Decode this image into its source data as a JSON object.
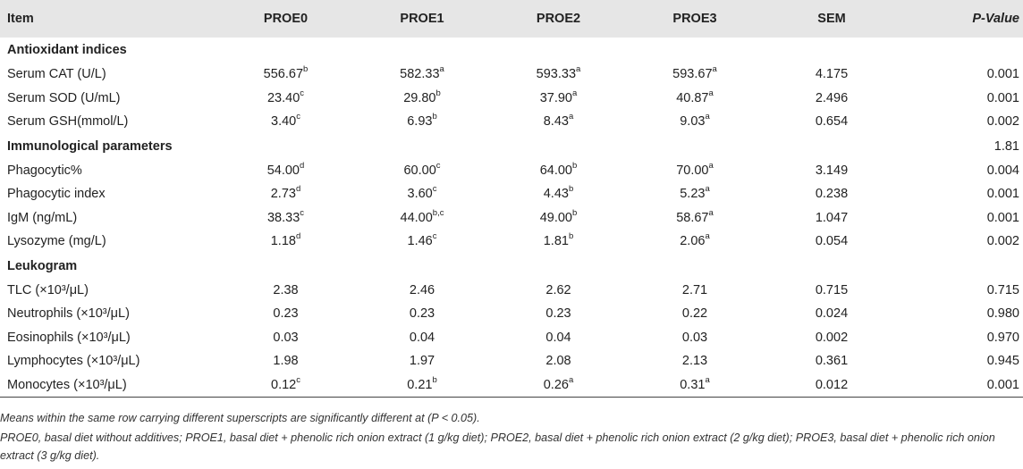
{
  "table": {
    "columns": [
      "Item",
      "PROE0",
      "PROE1",
      "PROE2",
      "PROE3",
      "SEM",
      "P-Value"
    ],
    "sections": [
      {
        "label": "Antioxidant indices",
        "section_pvalue": "",
        "rows": [
          {
            "item": "Serum CAT (U/L)",
            "values": [
              [
                "556.67",
                "b"
              ],
              [
                "582.33",
                "a"
              ],
              [
                "593.33",
                "a"
              ],
              [
                "593.67",
                "a"
              ]
            ],
            "sem": "4.175",
            "p": "0.001"
          },
          {
            "item": "Serum SOD (U/mL)",
            "values": [
              [
                "23.40",
                "c"
              ],
              [
                "29.80",
                "b"
              ],
              [
                "37.90",
                "a"
              ],
              [
                "40.87",
                "a"
              ]
            ],
            "sem": "2.496",
            "p": "0.001"
          },
          {
            "item": "Serum GSH(mmol/L)",
            "values": [
              [
                "3.40",
                "c"
              ],
              [
                "6.93",
                "b"
              ],
              [
                "8.43",
                "a"
              ],
              [
                "9.03",
                "a"
              ]
            ],
            "sem": "0.654",
            "p": "0.002"
          }
        ]
      },
      {
        "label": "Immunological parameters",
        "section_pvalue": "1.81",
        "rows": [
          {
            "item": "Phagocytic%",
            "values": [
              [
                "54.00",
                "d"
              ],
              [
                "60.00",
                "c"
              ],
              [
                "64.00",
                "b"
              ],
              [
                "70.00",
                "a"
              ]
            ],
            "sem": "3.149",
            "p": "0.004"
          },
          {
            "item": "Phagocytic index",
            "values": [
              [
                "2.73",
                "d"
              ],
              [
                "3.60",
                "c"
              ],
              [
                "4.43",
                "b"
              ],
              [
                "5.23",
                "a"
              ]
            ],
            "sem": "0.238",
            "p": "0.001"
          },
          {
            "item": "IgM (ng/mL)",
            "values": [
              [
                "38.33",
                "c"
              ],
              [
                "44.00",
                "b,c"
              ],
              [
                "49.00",
                "b"
              ],
              [
                "58.67",
                "a"
              ]
            ],
            "sem": "1.047",
            "p": "0.001"
          },
          {
            "item": "Lysozyme (mg/L)",
            "values": [
              [
                "1.18",
                "d"
              ],
              [
                "1.46",
                "c"
              ],
              [
                "1.81",
                "b"
              ],
              [
                "2.06",
                "a"
              ]
            ],
            "sem": "0.054",
            "p": "0.002"
          }
        ]
      },
      {
        "label": "Leukogram",
        "section_pvalue": "",
        "rows": [
          {
            "item": "TLC (×10³/μL)",
            "values": [
              [
                "2.38",
                ""
              ],
              [
                "2.46",
                ""
              ],
              [
                "2.62",
                ""
              ],
              [
                "2.71",
                ""
              ]
            ],
            "sem": "0.715",
            "p": "0.715"
          },
          {
            "item": "Neutrophils (×10³/μL)",
            "values": [
              [
                "0.23",
                ""
              ],
              [
                "0.23",
                ""
              ],
              [
                "0.23",
                ""
              ],
              [
                "0.22",
                ""
              ]
            ],
            "sem": "0.024",
            "p": "0.980"
          },
          {
            "item": "Eosinophils (×10³/μL)",
            "values": [
              [
                "0.03",
                ""
              ],
              [
                "0.04",
                ""
              ],
              [
                "0.04",
                ""
              ],
              [
                "0.03",
                ""
              ]
            ],
            "sem": "0.002",
            "p": "0.970"
          },
          {
            "item": "Lymphocytes (×10³/μL)",
            "values": [
              [
                "1.98",
                ""
              ],
              [
                "1.97",
                ""
              ],
              [
                "2.08",
                ""
              ],
              [
                "2.13",
                ""
              ]
            ],
            "sem": "0.361",
            "p": "0.945"
          },
          {
            "item": "Monocytes (×10³/μL)",
            "values": [
              [
                "0.12",
                "c"
              ],
              [
                "0.21",
                "b"
              ],
              [
                "0.26",
                "a"
              ],
              [
                "0.31",
                "a"
              ]
            ],
            "sem": "0.012",
            "p": "0.001"
          }
        ]
      }
    ]
  },
  "notes": {
    "line1": "Means within the same row carrying different superscripts are significantly different at (P < 0.05).",
    "line2": "PROE0, basal diet without additives; PROE1, basal diet + phenolic rich onion extract (1 g/kg diet); PROE2, basal diet + phenolic rich onion extract (2 g/kg diet); PROE3, basal diet + phenolic rich onion extract (3 g/kg diet)."
  },
  "colors": {
    "header_bg": "#e6e6e6",
    "text": "#222222",
    "rule": "#444444"
  }
}
